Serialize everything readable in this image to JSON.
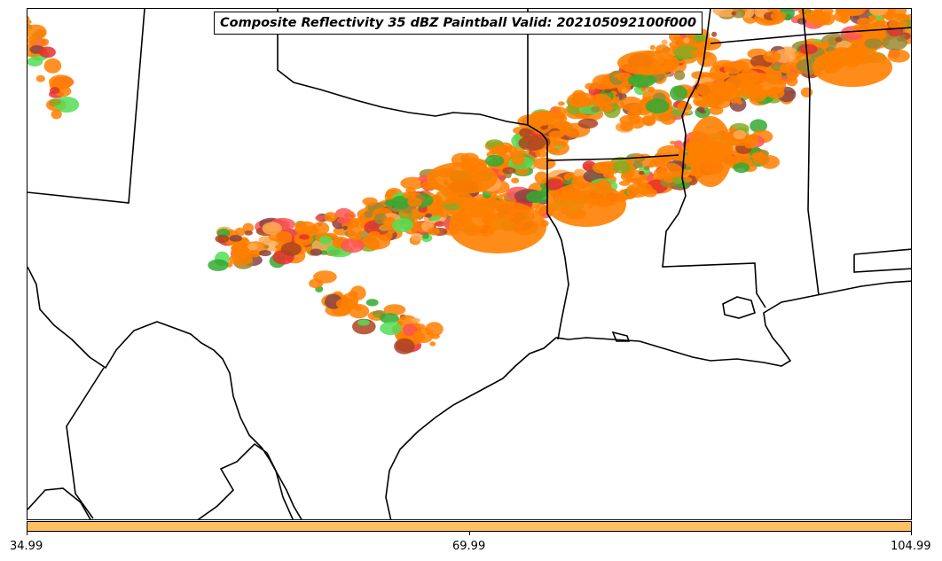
{
  "map": {
    "title": "Composite Reflectivity 35 dBZ Paintball Valid: 202105092100f000",
    "colors": {
      "border": "#000000",
      "background": "#ffffff",
      "paintball": [
        "#ff7f00",
        "#ff5555",
        "#e53030",
        "#55dd55",
        "#33aa33",
        "#998833",
        "#aa4422",
        "#ffaa55",
        "#884444",
        "#88aa22"
      ]
    }
  },
  "colorbar": {
    "color": "#ffc060",
    "ticks": [
      "34.99",
      "69.99",
      "104.99"
    ]
  }
}
